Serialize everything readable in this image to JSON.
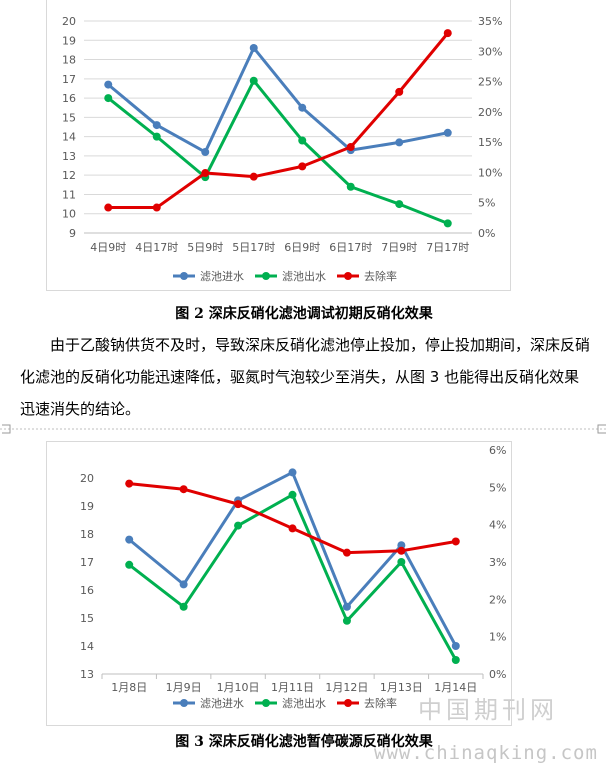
{
  "figure2": {
    "caption": "图 2 深床反硝化滤池调试初期反硝化效果"
  },
  "paragraph1": "由于乙酸钠供货不及时，导致深床反硝化滤池停止投加，停止投加期间，深床反硝化滤池的反硝化功能迅速降低，驱氮时气泡较少至消失，从图 3 也能得出反硝化效果迅速消失的结论。",
  "figure3": {
    "caption": "图 3 深床反硝化滤池暂停碳源反硝化效果"
  },
  "watermark": {
    "cn": "中国期刊网",
    "url": "www.chinaqking.com"
  },
  "chart_data": [
    {
      "type": "line",
      "categories": [
        "4日9时",
        "4日17时",
        "5日9时",
        "5日17时",
        "6日9时",
        "6日17时",
        "7日9时",
        "7日17时"
      ],
      "series": [
        {
          "name": "滤池进水",
          "axis": "left",
          "color": "#4a7ebb",
          "values": [
            16.7,
            14.6,
            13.2,
            18.6,
            15.5,
            13.3,
            13.7,
            14.2
          ]
        },
        {
          "name": "滤池出水",
          "axis": "left",
          "color": "#00b050",
          "values": [
            16.0,
            14.0,
            11.9,
            16.9,
            13.8,
            11.4,
            10.5,
            9.5
          ]
        },
        {
          "name": "去除率",
          "axis": "right",
          "color": "#e00000",
          "values": [
            4.2,
            4.2,
            9.9,
            9.3,
            11.0,
            14.2,
            23.3,
            33.0
          ]
        }
      ],
      "ylim": [
        9,
        20
      ],
      "yticks": [
        9,
        10,
        11,
        12,
        13,
        14,
        15,
        16,
        17,
        18,
        19,
        20
      ],
      "y2lim": [
        0,
        35
      ],
      "y2ticks": [
        "0%",
        "5%",
        "10%",
        "15%",
        "20%",
        "25%",
        "30%",
        "35%"
      ],
      "grid": true,
      "legend": "bottom"
    },
    {
      "type": "line",
      "categories": [
        "1月8日",
        "1月9日",
        "1月10日",
        "1月11日",
        "1月12日",
        "1月13日",
        "1月14日"
      ],
      "series": [
        {
          "name": "滤池进水",
          "axis": "left",
          "color": "#4a7ebb",
          "values": [
            17.8,
            16.2,
            19.2,
            20.2,
            15.4,
            17.6,
            14.0
          ]
        },
        {
          "name": "滤池出水",
          "axis": "left",
          "color": "#00b050",
          "values": [
            16.9,
            15.4,
            18.3,
            19.4,
            14.9,
            17.0,
            13.5
          ]
        },
        {
          "name": "去除率",
          "axis": "right",
          "color": "#e00000",
          "values": [
            5.1,
            4.95,
            4.55,
            3.9,
            3.25,
            3.3,
            3.55
          ]
        }
      ],
      "ylim": [
        13,
        21
      ],
      "yticks": [
        13,
        14,
        15,
        16,
        17,
        18,
        19,
        20
      ],
      "y2lim": [
        0,
        6
      ],
      "y2ticks": [
        "0%",
        "1%",
        "2%",
        "3%",
        "4%",
        "5%",
        "6%"
      ],
      "grid": false,
      "legend": "bottom"
    }
  ]
}
